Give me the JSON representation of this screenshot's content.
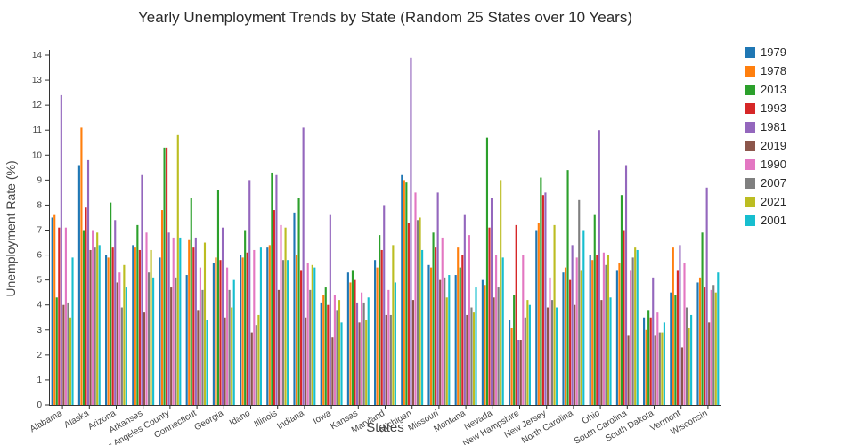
{
  "chart_data": {
    "type": "bar",
    "title": "Yearly Unemployment Trends by State (Random 25 States over 10 Years)",
    "xlabel": "States",
    "ylabel": "Unemployment Rate (%)",
    "ylim": [
      0,
      14
    ],
    "y_tick_step": 1,
    "grid": false,
    "legend_position": "right",
    "categories": [
      "Alabama",
      "Alaska",
      "Arizona",
      "Arkansas",
      "Los Angeles County",
      "Connecticut",
      "Georgia",
      "Idaho",
      "Illinois",
      "Indiana",
      "Iowa",
      "Kansas",
      "Maryland",
      "Michigan",
      "Missouri",
      "Montana",
      "Nevada",
      "New Hampshire",
      "New Jersey",
      "North Carolina",
      "Ohio",
      "South Carolina",
      "South Dakota",
      "Vermont",
      "Wisconsin"
    ],
    "series": [
      {
        "name": "1979",
        "color": "#1f77b4",
        "values": [
          7.5,
          9.6,
          6.0,
          6.4,
          5.9,
          5.2,
          5.7,
          6.0,
          6.3,
          7.7,
          4.1,
          5.3,
          5.8,
          9.2,
          5.6,
          5.2,
          5.0,
          3.4,
          7.0,
          5.3,
          6.0,
          5.4,
          3.5,
          4.5,
          4.9
        ]
      },
      {
        "name": "1978",
        "color": "#ff7f0e",
        "values": [
          7.6,
          11.1,
          5.9,
          6.3,
          7.8,
          6.6,
          5.9,
          5.9,
          6.4,
          6.0,
          4.4,
          4.9,
          5.5,
          9.0,
          5.5,
          6.3,
          4.8,
          3.1,
          7.3,
          5.5,
          5.8,
          5.7,
          3.0,
          6.3,
          5.1
        ]
      },
      {
        "name": "2013",
        "color": "#2ca02c",
        "values": [
          4.3,
          7.0,
          8.1,
          7.2,
          10.3,
          8.3,
          8.6,
          7.0,
          9.3,
          8.3,
          4.7,
          5.4,
          6.8,
          8.9,
          6.9,
          5.5,
          10.7,
          4.4,
          9.1,
          9.4,
          7.6,
          8.4,
          3.8,
          4.4,
          6.9
        ]
      },
      {
        "name": "1993",
        "color": "#d62728",
        "values": [
          7.1,
          7.9,
          6.3,
          6.2,
          10.3,
          6.3,
          5.8,
          6.1,
          7.8,
          5.4,
          4.0,
          5.0,
          6.2,
          7.3,
          6.3,
          6.0,
          7.1,
          7.2,
          8.4,
          5.0,
          6.0,
          7.0,
          3.5,
          5.4,
          4.7
        ]
      },
      {
        "name": "1981",
        "color": "#9467bd",
        "values": [
          12.4,
          9.8,
          7.4,
          9.2,
          6.9,
          6.7,
          7.1,
          9.0,
          9.2,
          11.1,
          7.6,
          4.1,
          8.0,
          13.9,
          8.5,
          7.6,
          8.3,
          2.6,
          8.5,
          6.4,
          11.0,
          9.6,
          5.1,
          6.4,
          8.7
        ]
      },
      {
        "name": "2019",
        "color": "#8c564b",
        "values": [
          4.0,
          6.2,
          4.9,
          3.7,
          4.7,
          3.8,
          3.5,
          2.9,
          4.6,
          3.5,
          2.7,
          3.3,
          3.6,
          4.2,
          5.0,
          3.6,
          4.3,
          2.6,
          3.9,
          4.0,
          4.2,
          2.8,
          2.8,
          2.3,
          3.3
        ]
      },
      {
        "name": "1990",
        "color": "#e377c2",
        "values": [
          7.1,
          7.0,
          5.3,
          6.9,
          6.7,
          5.5,
          5.5,
          6.2,
          7.2,
          5.7,
          4.4,
          4.5,
          4.6,
          8.5,
          6.7,
          6.8,
          6.0,
          6.0,
          5.1,
          5.9,
          6.1,
          5.4,
          3.7,
          5.7,
          4.6
        ]
      },
      {
        "name": "2007",
        "color": "#7f7f7f",
        "values": [
          4.1,
          6.3,
          3.9,
          5.3,
          5.1,
          4.6,
          4.6,
          3.2,
          5.8,
          4.6,
          3.8,
          4.1,
          3.6,
          7.4,
          5.1,
          3.9,
          4.7,
          3.5,
          4.2,
          8.2,
          5.6,
          5.9,
          2.9,
          3.9,
          4.8
        ]
      },
      {
        "name": "2021",
        "color": "#bcbd22",
        "values": [
          3.5,
          6.9,
          5.6,
          6.2,
          10.8,
          6.5,
          3.9,
          3.6,
          7.1,
          5.6,
          4.2,
          3.4,
          6.4,
          7.5,
          4.3,
          3.7,
          9.0,
          4.2,
          7.2,
          5.4,
          6.0,
          6.3,
          2.9,
          3.1,
          4.5
        ]
      },
      {
        "name": "2001",
        "color": "#17becf",
        "values": [
          5.9,
          6.4,
          4.7,
          5.1,
          6.7,
          3.4,
          5.0,
          6.3,
          5.8,
          5.5,
          3.3,
          4.3,
          4.9,
          6.2,
          5.2,
          4.7,
          5.9,
          4.0,
          3.9,
          7.0,
          4.3,
          6.2,
          3.3,
          3.6,
          5.3
        ]
      }
    ]
  }
}
